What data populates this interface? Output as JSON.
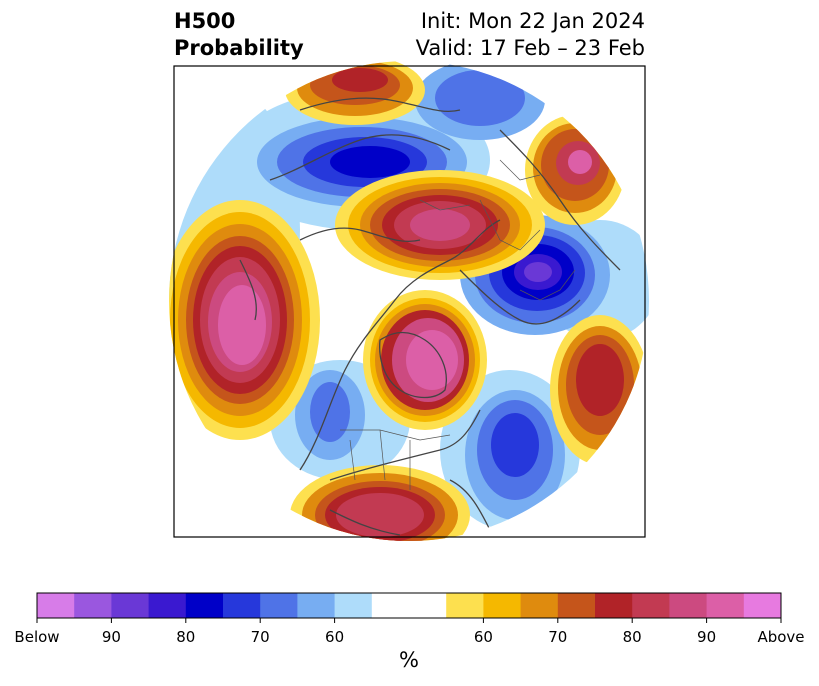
{
  "title": {
    "left_line1": "H500",
    "left_line2": "Probability",
    "init": "Init: Mon 22 Jan 2024",
    "valid": "Valid: 17 Feb – 23 Feb"
  },
  "colorbar": {
    "colors": [
      "#d77ce8",
      "#9a57df",
      "#6a38d6",
      "#3a19d0",
      "#0000c8",
      "#2638db",
      "#4f73e7",
      "#77adf2",
      "#aedcfa",
      "#ffffff",
      "#ffffff",
      "#fde04f",
      "#f5b800",
      "#df8b0e",
      "#c5551b",
      "#b12328",
      "#c23a52",
      "#cc4a80",
      "#dc5fa7",
      "#e77ae0"
    ],
    "ticks": [
      "Below",
      "90",
      "80",
      "70",
      "60",
      "60",
      "70",
      "80",
      "90",
      "Above"
    ],
    "unit": "%"
  },
  "colors": {
    "above_light": "#fde04f",
    "above_mid": "#df8b0e",
    "above_strong": "#b12328",
    "above_max": "#dc5fa7",
    "below_light": "#aedcfa",
    "below_mid": "#4f73e7",
    "below_strong": "#0000c8",
    "below_max": "#6a38d6",
    "coastline": "#444444"
  }
}
